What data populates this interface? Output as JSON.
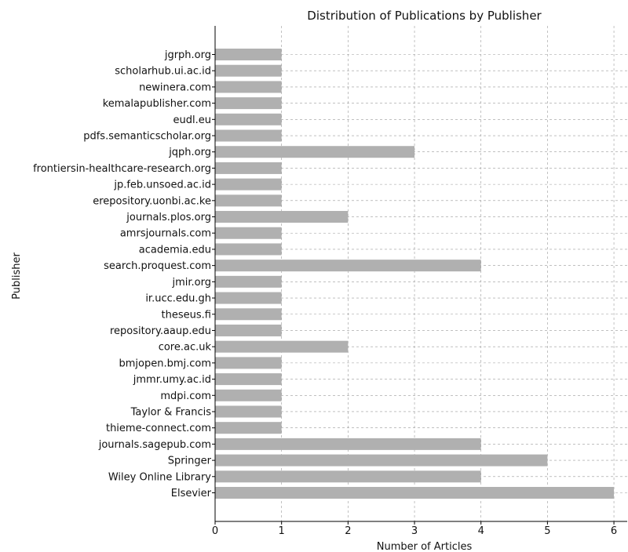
{
  "chart_data": {
    "type": "bar",
    "orientation": "horizontal",
    "title": "Distribution of Publications by Publisher",
    "xlabel": "Number of Articles",
    "ylabel": "Publisher",
    "xlim": [
      0,
      6.2
    ],
    "xticks": [
      0,
      1,
      2,
      3,
      4,
      5,
      6
    ],
    "grid": true,
    "bar_color": "#b0b0b0",
    "categories": [
      "Elsevier",
      "Wiley Online Library",
      "Springer",
      "journals.sagepub.com",
      "thieme-connect.com",
      "Taylor & Francis",
      "mdpi.com",
      "jmmr.umy.ac.id",
      "bmjopen.bmj.com",
      "core.ac.uk",
      "repository.aaup.edu",
      "theseus.fi",
      "ir.ucc.edu.gh",
      "jmir.org",
      "search.proquest.com",
      "academia.edu",
      "amrsjournals.com",
      "journals.plos.org",
      "erepository.uonbi.ac.ke",
      "jp.feb.unsoed.ac.id",
      "frontiersin-healthcare-research.org",
      "jqph.org",
      "pdfs.semanticscholar.org",
      "eudl.eu",
      "kemalapublisher.com",
      "newinera.com",
      "scholarhub.ui.ac.id",
      "jgrph.org"
    ],
    "values": [
      6,
      4,
      5,
      4,
      1,
      1,
      1,
      1,
      1,
      2,
      1,
      1,
      1,
      1,
      4,
      1,
      1,
      2,
      1,
      1,
      1,
      3,
      1,
      1,
      1,
      1,
      1,
      1
    ]
  }
}
